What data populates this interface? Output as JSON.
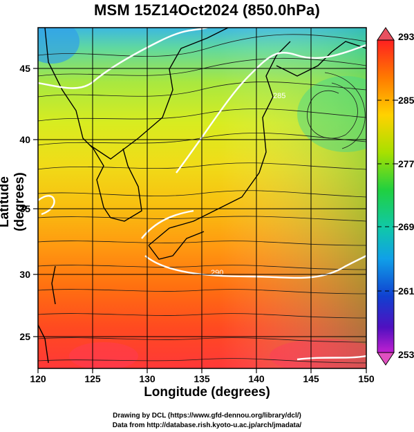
{
  "title": "MSM 15Z14Oct2024 (850.0hPa)",
  "x_axis": {
    "label": "Longitude (degrees)",
    "ticks": [
      "120",
      "125",
      "130",
      "135",
      "140",
      "145",
      "150"
    ]
  },
  "y_axis": {
    "label": "Latitude  (degrees)",
    "ticks": [
      "25",
      "30",
      "35",
      "40",
      "45"
    ]
  },
  "colorbar": {
    "ticks": [
      "293",
      "285",
      "277",
      "269",
      "261",
      "253"
    ],
    "colors": [
      "#e04080",
      "#ff2020",
      "#ff7a00",
      "#ffd200",
      "#a8e000",
      "#20d040",
      "#10c8a8",
      "#10a0e8",
      "#1040d0",
      "#5010c0",
      "#c020d0"
    ]
  },
  "contour_labels": [
    "285",
    "290"
  ],
  "credits": {
    "line1": "Drawing by DCL (https://www.gfd-dennou.org/library/dcl/)",
    "line2": "Data from http://database.rish.kyoto-u.ac.jp/arch/jmadata/"
  }
}
